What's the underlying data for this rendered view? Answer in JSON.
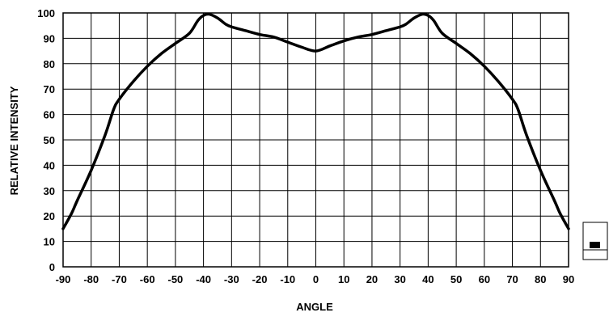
{
  "chart_data": {
    "type": "line",
    "title": "",
    "xlabel": "ANGLE",
    "ylabel": "RELATIVE INTENSITY",
    "xlim": [
      -90,
      90
    ],
    "ylim": [
      0,
      100
    ],
    "x_ticks": [
      -90,
      -80,
      -70,
      -60,
      -50,
      -40,
      -30,
      -20,
      -10,
      0,
      10,
      20,
      30,
      40,
      50,
      60,
      70,
      80,
      90
    ],
    "x_tick_labels": [
      "-90",
      "-80",
      "-70",
      "-60",
      "-50",
      "-40",
      "-30",
      "-20",
      "-10",
      "0",
      "10",
      "20",
      "30",
      "40",
      "50",
      "60",
      "70",
      "80",
      "90"
    ],
    "y_ticks": [
      0,
      10,
      20,
      30,
      40,
      50,
      60,
      70,
      80,
      90,
      100
    ],
    "y_tick_labels": [
      "0",
      "10",
      "20",
      "30",
      "40",
      "50",
      "60",
      "70",
      "80",
      "90",
      "100"
    ],
    "grid": true,
    "series": [
      {
        "x": [
          -90,
          -87,
          -85,
          -80,
          -75,
          -72,
          -70,
          -65,
          -60,
          -55,
          -50,
          -45,
          -42,
          -40,
          -38,
          -35,
          -32,
          -30,
          -25,
          -20,
          -15,
          -10,
          -5,
          0,
          5,
          10,
          15,
          20,
          25,
          30,
          32,
          35,
          38,
          40,
          42,
          45,
          50,
          55,
          60,
          65,
          70,
          72,
          75,
          80,
          85,
          87,
          90
        ],
        "y": [
          15,
          21,
          26,
          38,
          52,
          62,
          66,
          73,
          79,
          84,
          88,
          92,
          97,
          99,
          99.5,
          98,
          95.5,
          94.5,
          93,
          91.5,
          90.5,
          88.5,
          86.5,
          85,
          87,
          89,
          90.5,
          91.5,
          93,
          94.5,
          95.5,
          98,
          99.5,
          99,
          97,
          92,
          88,
          84,
          79,
          73,
          66,
          62,
          52,
          38,
          26,
          21,
          15
        ]
      }
    ],
    "legend_position": "right",
    "line_color": "#000000",
    "grid_color": "#000000"
  }
}
